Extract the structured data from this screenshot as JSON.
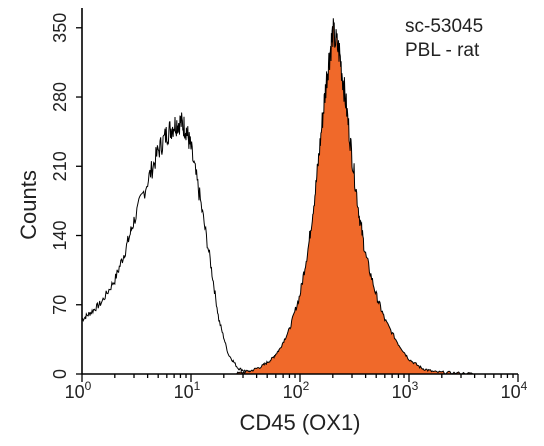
{
  "chart_data": {
    "type": "area",
    "xlabel": "CD45 (OX1)",
    "ylabel": "Counts",
    "x_scale": "log",
    "xlim": [
      1,
      10000
    ],
    "ylim": [
      0,
      370
    ],
    "x_ticks": [
      {
        "value": 1,
        "base": "10",
        "exp": "0"
      },
      {
        "value": 10,
        "base": "10",
        "exp": "1"
      },
      {
        "value": 100,
        "base": "10",
        "exp": "2"
      },
      {
        "value": 1000,
        "base": "10",
        "exp": "3"
      },
      {
        "value": 10000,
        "base": "10",
        "exp": "4"
      }
    ],
    "y_ticks": [
      0,
      70,
      140,
      210,
      280,
      350
    ],
    "annotations": [
      "sc-53045",
      "PBL - rat"
    ],
    "colors": {
      "filled": "#F0692A",
      "outline": "#000000"
    },
    "series": [
      {
        "style": "outline",
        "x": [
          1,
          1.2,
          1.5,
          2,
          2.5,
          3,
          4,
          5,
          6,
          7,
          8,
          9,
          10,
          12,
          15,
          18,
          22,
          27,
          33,
          40
        ],
        "y": [
          55,
          62,
          72,
          95,
          125,
          155,
          195,
          225,
          243,
          252,
          255,
          248,
          228,
          180,
          115,
          55,
          20,
          6,
          2,
          0
        ]
      },
      {
        "style": "filled",
        "x": [
          25,
          35,
          45,
          55,
          65,
          80,
          100,
          120,
          140,
          160,
          180,
          200,
          230,
          260,
          300,
          350,
          400,
          500,
          600,
          800,
          1000,
          1300,
          1700,
          2500,
          4000
        ],
        "y": [
          0,
          3,
          8,
          15,
          25,
          45,
          80,
          130,
          190,
          255,
          310,
          345,
          325,
          280,
          220,
          160,
          120,
          80,
          55,
          30,
          15,
          6,
          2,
          1,
          0
        ]
      }
    ]
  }
}
